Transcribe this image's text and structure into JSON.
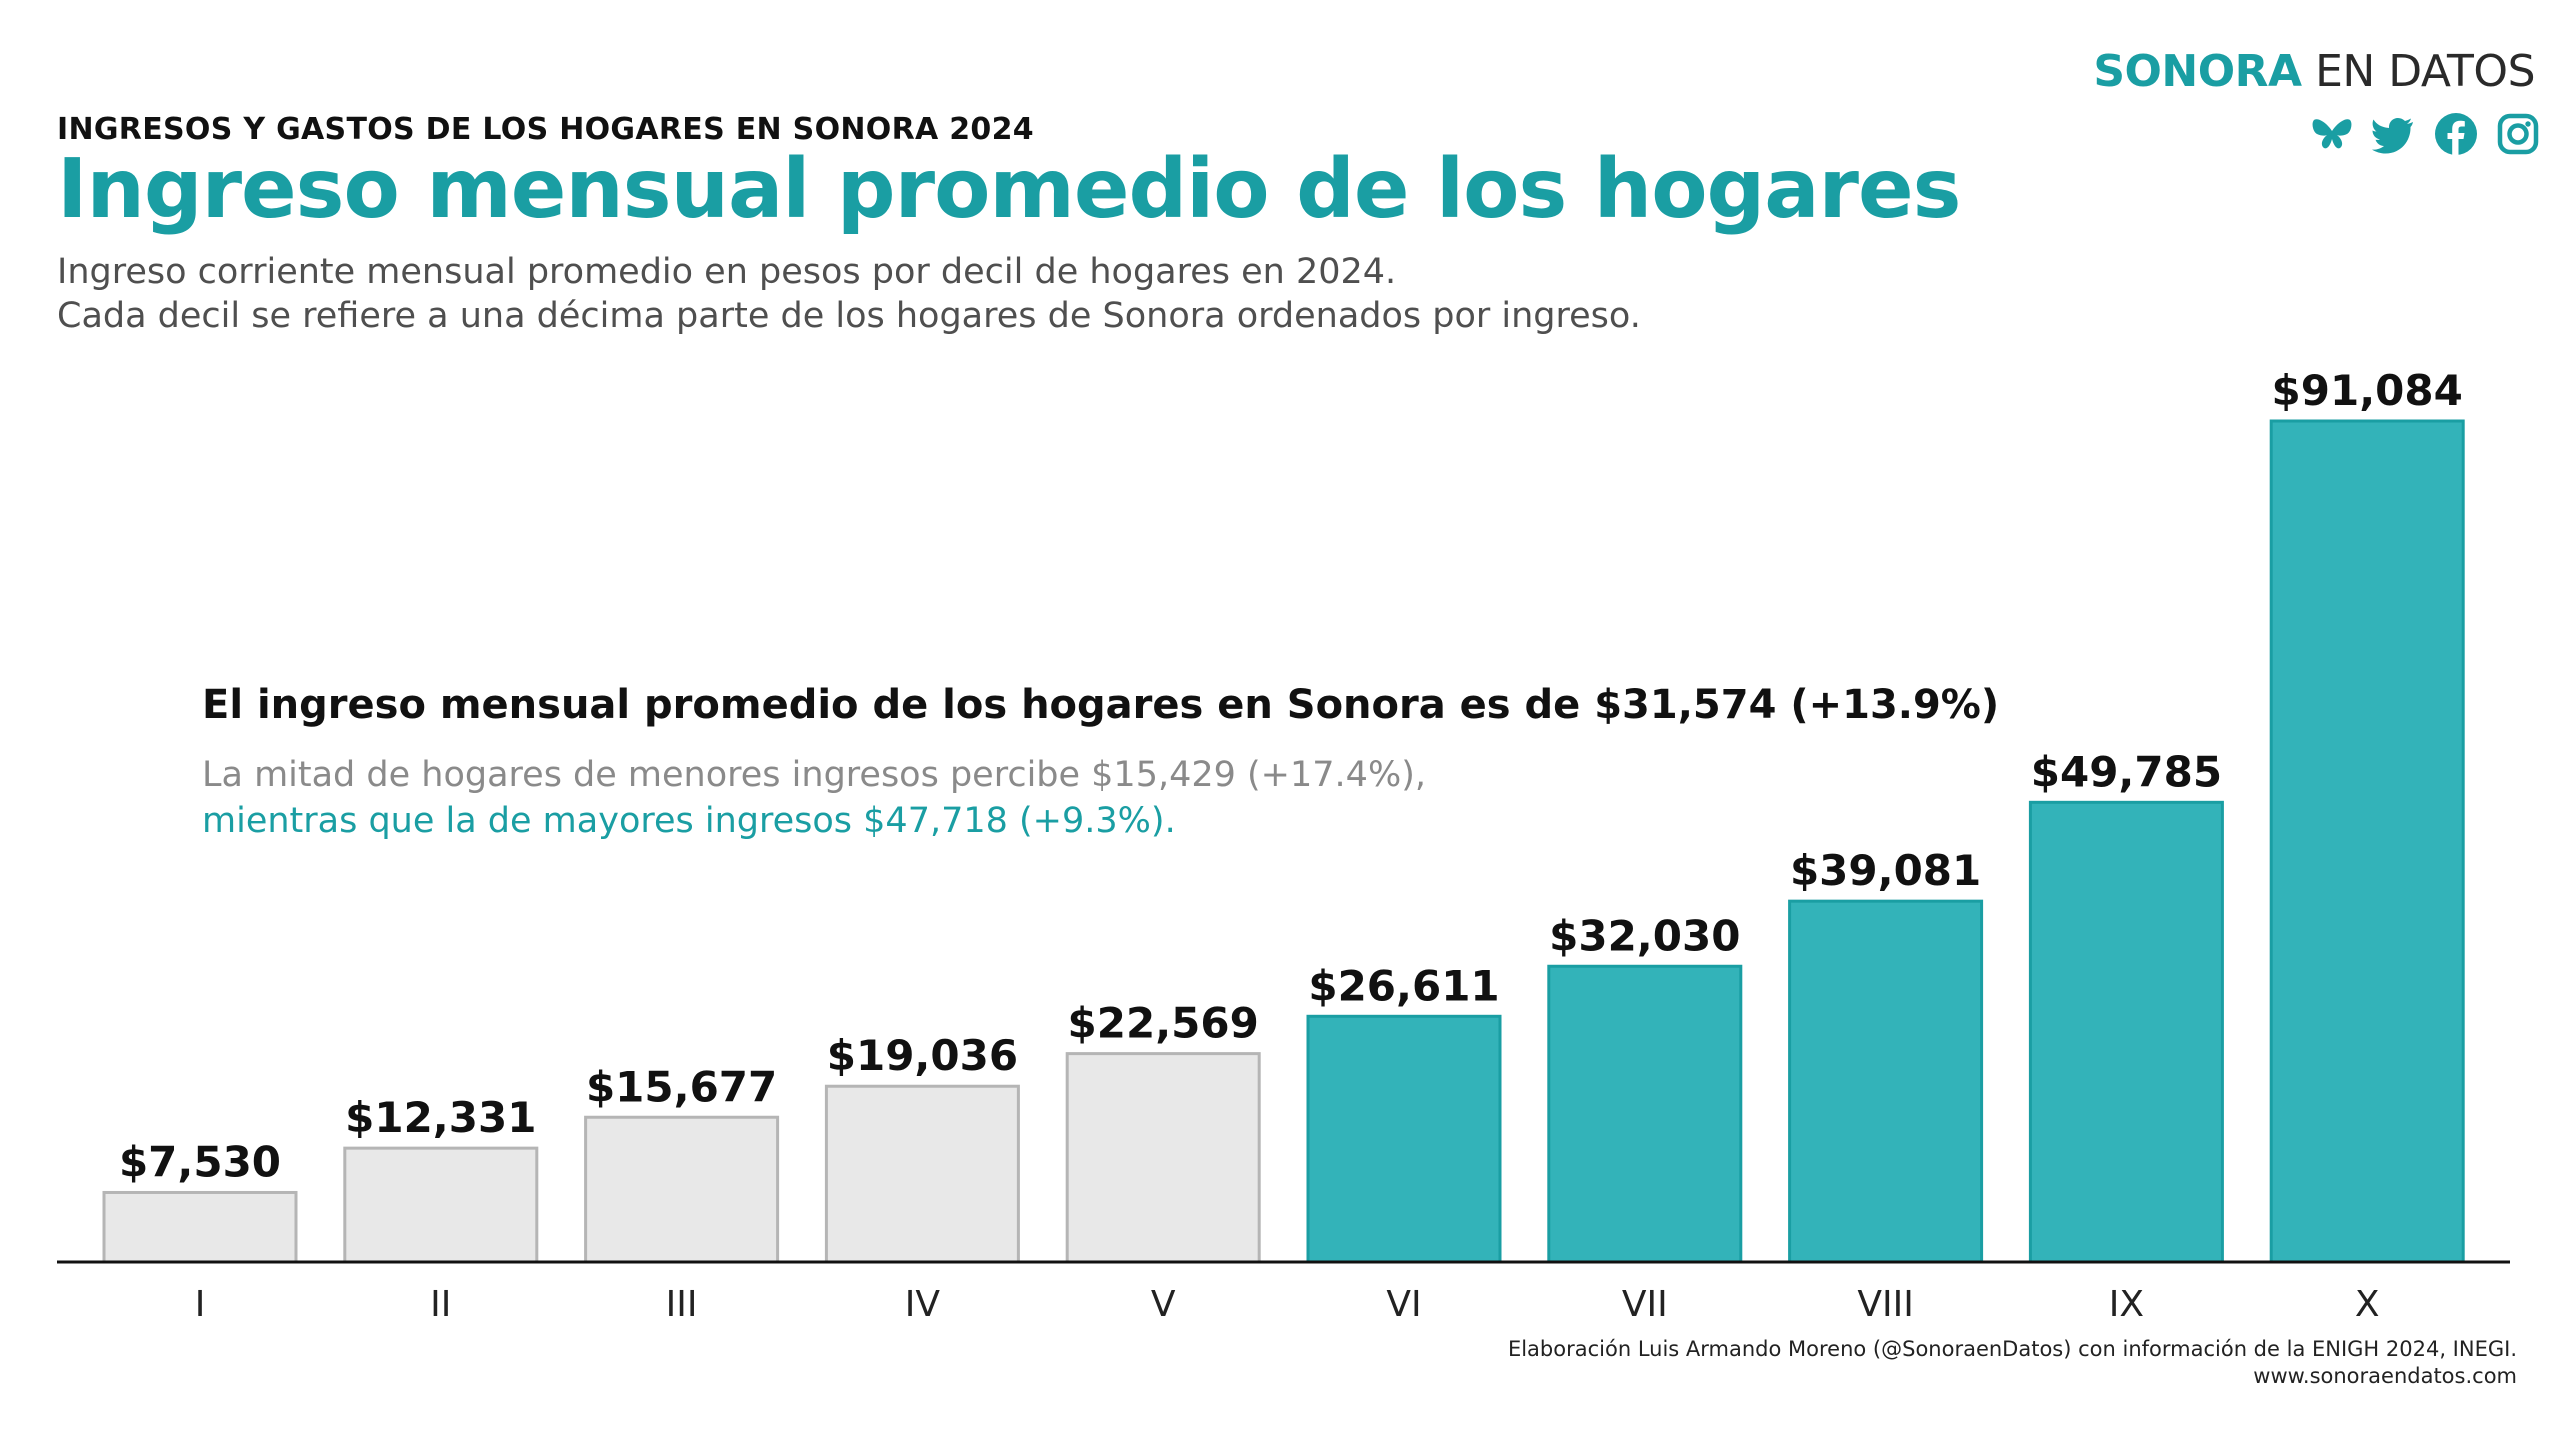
{
  "header": {
    "kicker": "INGRESOS Y GASTOS DE LOS HOGARES EN SONORA 2024",
    "title": "Ingreso mensual promedio de los hogares",
    "subtitle_line1": "Ingreso corriente mensual promedio en pesos por decil de hogares en 2024.",
    "subtitle_line2": "Cada decil se refiere a una décima parte de los hogares de Sonora ordenados por ingreso."
  },
  "brand": {
    "part1": "SONORA",
    "part2": " EN DATOS",
    "icons": [
      "butterfly-icon",
      "twitter-icon",
      "facebook-icon",
      "instagram-icon"
    ]
  },
  "callout": {
    "headline": "El ingreso mensual promedio de los hogares en Sonora es de $31,574 (+13.9%)",
    "line1": "La mitad de hogares de menores ingresos percibe $15,429 (+17.4%),",
    "line2": "mientras que la de mayores ingresos $47,718 (+9.3%)."
  },
  "footer": {
    "source": "Elaboración Luis Armando Moreno (@SonoraenDatos) con información de la ENIGH 2024, INEGI.",
    "url": "www.sonoraendatos.com"
  },
  "colors": {
    "accent": "#1a9ea3",
    "teal_fill": "#33b3b9",
    "teal_stroke": "#1a9ea3",
    "gray_fill": "#e8e8e8",
    "gray_stroke": "#b5b5b5",
    "callout_gray": "#8a8a8a"
  },
  "chart_data": {
    "type": "bar",
    "categories": [
      "I",
      "II",
      "III",
      "IV",
      "V",
      "VI",
      "VII",
      "VIII",
      "IX",
      "X"
    ],
    "values": [
      7530,
      12331,
      15677,
      19036,
      22569,
      26611,
      32030,
      39081,
      49785,
      91084
    ],
    "data_labels": [
      "$7,530",
      "$12,331",
      "$15,677",
      "$19,036",
      "$22,569",
      "$26,611",
      "$32,030",
      "$39,081",
      "$49,785",
      "$91,084"
    ],
    "highlight_from_index": 5,
    "ylim": [
      0,
      91084
    ],
    "grid": false,
    "legend": "none"
  }
}
